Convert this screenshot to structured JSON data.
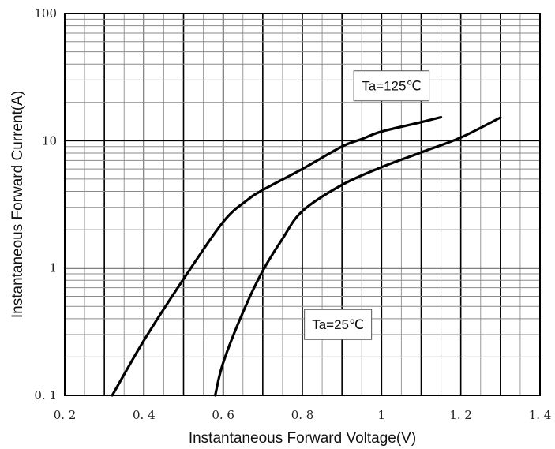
{
  "chart_data": {
    "type": "line",
    "xlabel": "Instantaneous Forward Voltage(V)",
    "ylabel": "Instantaneous Forward Current(A)",
    "xlim": [
      0.2,
      1.4
    ],
    "ylim": [
      0.1,
      100
    ],
    "yscale": "log",
    "grid": true,
    "x_ticks": [
      0.2,
      0.4,
      0.6,
      0.8,
      1.0,
      1.2,
      1.4
    ],
    "x_tick_labels": [
      "0. 2",
      "0. 4",
      "0. 6",
      "0. 8",
      "1",
      "1. 2",
      "1. 4"
    ],
    "y_ticks": [
      0.1,
      1,
      10,
      100
    ],
    "y_tick_labels": [
      "0. 1",
      "1",
      "10",
      "100"
    ],
    "series": [
      {
        "points": [
          [
            0.32,
            0.1
          ],
          [
            0.4,
            0.27
          ],
          [
            0.5,
            0.82
          ],
          [
            0.6,
            2.3
          ],
          [
            0.66,
            3.4
          ],
          [
            0.7,
            4.1
          ],
          [
            0.8,
            6.0
          ],
          [
            0.9,
            9.0
          ],
          [
            0.95,
            10.3
          ],
          [
            1.0,
            11.8
          ],
          [
            1.1,
            14.0
          ],
          [
            1.15,
            15.3
          ]
        ]
      },
      {
        "points": [
          [
            0.58,
            0.1
          ],
          [
            0.6,
            0.18
          ],
          [
            0.65,
            0.45
          ],
          [
            0.7,
            0.95
          ],
          [
            0.75,
            1.7
          ],
          [
            0.8,
            2.8
          ],
          [
            0.9,
            4.5
          ],
          [
            1.0,
            6.2
          ],
          [
            1.1,
            8.1
          ],
          [
            1.2,
            10.6
          ],
          [
            1.3,
            15.2
          ]
        ]
      }
    ],
    "annotations": [
      {
        "text": "Ta=125℃",
        "x": 1.025,
        "y": 27
      },
      {
        "text": "Ta=25℃",
        "x": 0.89,
        "y": 0.36
      }
    ]
  }
}
